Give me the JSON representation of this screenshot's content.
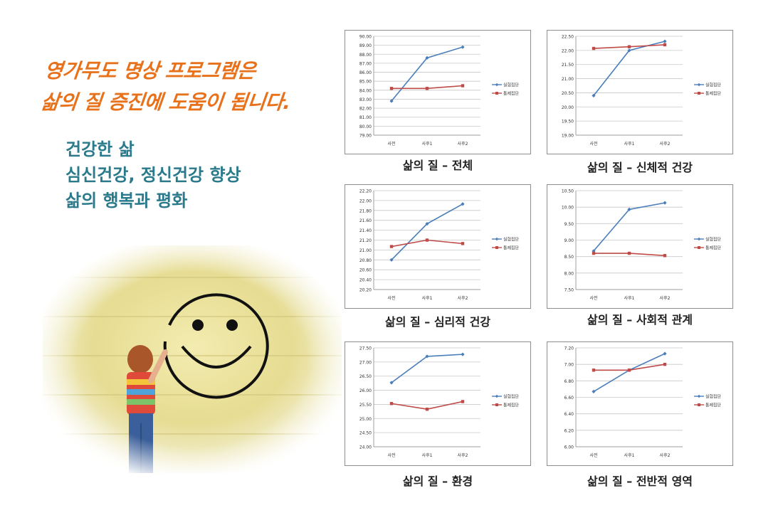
{
  "headline": {
    "line1": "영가무도 명상 프로그램은",
    "line2": "삶의 질 증진에 도움이 됩니다."
  },
  "benefits": [
    "건강한 삶",
    "심신건강, 정신건강 향상",
    "삶의 행복과 평화"
  ],
  "colors": {
    "headline": "#e8711b",
    "benefits": "#2b7a8c",
    "series_experimental": "#4a7ebb",
    "series_control": "#be4b48"
  },
  "photo": {
    "icon": "smiley-face-drawing-icon"
  },
  "chart_data": [
    {
      "type": "line",
      "title": "삶의 질 – 전체",
      "categories": [
        "사전",
        "사후1",
        "사후2"
      ],
      "ylim": [
        79,
        90
      ],
      "ystep": 1,
      "decimals": 2,
      "series": [
        {
          "name": "실험집단",
          "values": [
            82.8,
            87.6,
            88.8
          ]
        },
        {
          "name": "통제집단",
          "values": [
            84.2,
            84.2,
            84.5
          ]
        }
      ],
      "grid": true,
      "legend": "right"
    },
    {
      "type": "line",
      "title": "삶의 질 – 신체적 건강",
      "categories": [
        "사전",
        "사후1",
        "사후2"
      ],
      "ylim": [
        19,
        22.5
      ],
      "ystep": 0.5,
      "decimals": 2,
      "series": [
        {
          "name": "실험집단",
          "values": [
            20.4,
            22.0,
            22.32
          ]
        },
        {
          "name": "통제집단",
          "values": [
            22.07,
            22.13,
            22.2
          ]
        }
      ],
      "grid": true,
      "legend": "right"
    },
    {
      "type": "line",
      "title": "삶의 질 – 심리적 건강",
      "categories": [
        "사전",
        "사후1",
        "사후2"
      ],
      "ylim": [
        20.2,
        22.2
      ],
      "ystep": 0.2,
      "decimals": 2,
      "series": [
        {
          "name": "실험집단",
          "values": [
            20.8,
            21.53,
            21.93
          ]
        },
        {
          "name": "통제집단",
          "values": [
            21.07,
            21.2,
            21.13
          ]
        }
      ],
      "grid": true,
      "legend": "right"
    },
    {
      "type": "line",
      "title": "삶의 질 – 사회적 관계",
      "categories": [
        "사전",
        "사후1",
        "사후2"
      ],
      "ylim": [
        7.5,
        10.5
      ],
      "ystep": 0.5,
      "decimals": 2,
      "series": [
        {
          "name": "실험집단",
          "values": [
            8.67,
            9.93,
            10.13
          ]
        },
        {
          "name": "통제집단",
          "values": [
            8.6,
            8.6,
            8.53
          ]
        }
      ],
      "grid": true,
      "legend": "right"
    },
    {
      "type": "line",
      "title": "삶의 질 – 환경",
      "categories": [
        "사전",
        "사후1",
        "사후2"
      ],
      "ylim": [
        24,
        27.5
      ],
      "ystep": 0.5,
      "decimals": 2,
      "series": [
        {
          "name": "실험집단",
          "values": [
            26.27,
            27.2,
            27.27
          ]
        },
        {
          "name": "통제집단",
          "values": [
            25.53,
            25.33,
            25.6
          ]
        }
      ],
      "grid": true,
      "legend": "right"
    },
    {
      "type": "line",
      "title": "삶의 질 – 전반적 영역",
      "categories": [
        "사전",
        "사후1",
        "사후2"
      ],
      "ylim": [
        6.0,
        7.2
      ],
      "ystep": 0.2,
      "decimals": 2,
      "series": [
        {
          "name": "실험집단",
          "values": [
            6.67,
            6.93,
            7.13
          ]
        },
        {
          "name": "통제집단",
          "values": [
            6.93,
            6.93,
            7.0
          ]
        }
      ],
      "grid": true,
      "legend": "right"
    }
  ]
}
